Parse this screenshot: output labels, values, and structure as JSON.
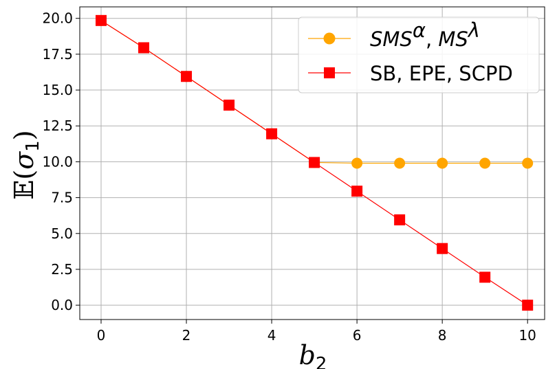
{
  "chart_data": {
    "type": "line",
    "xlabel": {
      "base": "b",
      "sub": "2"
    },
    "ylabel": {
      "prefix": "𝔼(",
      "var": "σ",
      "sub": "1",
      "suffix": ")"
    },
    "xlim": [
      -0.5,
      10.4
    ],
    "ylim": [
      -1.0,
      20.8
    ],
    "x_ticks": [
      0,
      2,
      4,
      6,
      8,
      10
    ],
    "y_ticks": [
      0.0,
      2.5,
      5.0,
      7.5,
      10.0,
      12.5,
      15.0,
      17.5,
      20.0
    ],
    "x_tick_labels": [
      "0",
      "2",
      "4",
      "6",
      "8",
      "10"
    ],
    "y_tick_labels": [
      "0.0",
      "2.5",
      "5.0",
      "7.5",
      "10.0",
      "12.5",
      "15.0",
      "17.5",
      "20.0"
    ],
    "grid": true,
    "legend_position": "top-right",
    "series": [
      {
        "name": "SMS^α, MS^λ",
        "legend": {
          "a": "SMS",
          "a_sup": "α",
          "sep": ", ",
          "b": "MS",
          "b_sup": "λ"
        },
        "marker": "circle",
        "color": "#FFA500",
        "x": [
          0,
          1,
          2,
          3,
          4,
          5,
          6,
          7,
          8,
          9,
          10
        ],
        "y": [
          19.85,
          17.95,
          15.95,
          13.95,
          11.95,
          9.95,
          9.9,
          9.9,
          9.9,
          9.9,
          9.9
        ]
      },
      {
        "name": "SB, EPE, SCPD",
        "legend": {
          "text": "SB, EPE, SCPD"
        },
        "marker": "square",
        "color": "#FF0000",
        "x": [
          0,
          1,
          2,
          3,
          4,
          5,
          6,
          7,
          8,
          9,
          10
        ],
        "y": [
          19.85,
          17.95,
          15.95,
          13.95,
          11.95,
          9.95,
          7.95,
          5.95,
          3.95,
          1.95,
          0.0
        ]
      }
    ]
  }
}
